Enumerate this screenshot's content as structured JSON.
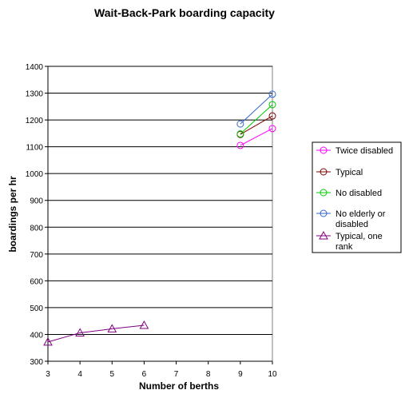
{
  "chart_data": {
    "type": "line",
    "title": "Wait-Back-Park boarding capacity",
    "xlabel": "Number of berths",
    "ylabel": "boardings per hr",
    "xlim": [
      3,
      10
    ],
    "ylim": [
      300,
      1400
    ],
    "x_ticks": [
      3,
      4,
      5,
      6,
      7,
      8,
      9,
      10
    ],
    "y_ticks": [
      300,
      400,
      500,
      600,
      700,
      800,
      900,
      1000,
      1100,
      1200,
      1300,
      1400
    ],
    "grid": "horizontal major gridlines",
    "legend_position": "right",
    "series": [
      {
        "name": "Twice disabled",
        "color": "#ff00ff",
        "marker": "circle",
        "x": [
          9,
          10
        ],
        "y": [
          1105,
          1168
        ]
      },
      {
        "name": "Typical",
        "color": "#800000",
        "marker": "circle",
        "x": [
          9,
          10
        ],
        "y": [
          1146,
          1215
        ]
      },
      {
        "name": "No disabled",
        "color": "#00cc00",
        "marker": "circle",
        "x": [
          9,
          10
        ],
        "y": [
          1148,
          1257
        ]
      },
      {
        "name": "No elderly or disabled",
        "color": "#3366cc",
        "marker": "circle",
        "x": [
          9,
          10
        ],
        "y": [
          1185,
          1296
        ]
      },
      {
        "name": "Typical, one rank",
        "color": "#800080",
        "marker": "triangle",
        "x": [
          3,
          4,
          5,
          6
        ],
        "y": [
          372,
          406,
          421,
          434
        ]
      }
    ]
  }
}
